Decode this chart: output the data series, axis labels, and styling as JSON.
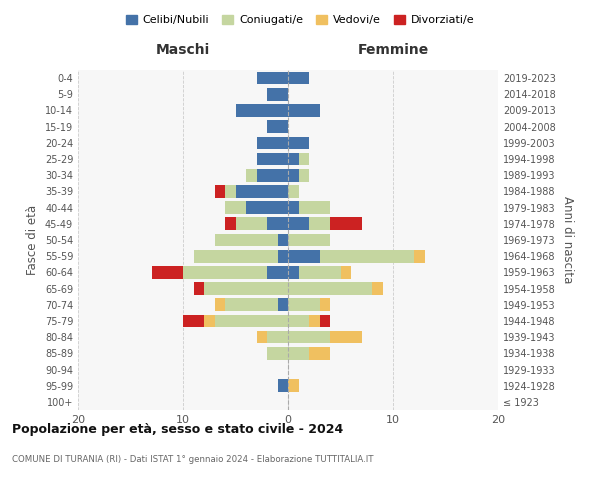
{
  "age_groups": [
    "100+",
    "95-99",
    "90-94",
    "85-89",
    "80-84",
    "75-79",
    "70-74",
    "65-69",
    "60-64",
    "55-59",
    "50-54",
    "45-49",
    "40-44",
    "35-39",
    "30-34",
    "25-29",
    "20-24",
    "15-19",
    "10-14",
    "5-9",
    "0-4"
  ],
  "birth_years": [
    "≤ 1923",
    "1924-1928",
    "1929-1933",
    "1934-1938",
    "1939-1943",
    "1944-1948",
    "1949-1953",
    "1954-1958",
    "1959-1963",
    "1964-1968",
    "1969-1973",
    "1974-1978",
    "1979-1983",
    "1984-1988",
    "1989-1993",
    "1994-1998",
    "1999-2003",
    "2004-2008",
    "2009-2013",
    "2014-2018",
    "2019-2023"
  ],
  "maschi": {
    "celibi": [
      0,
      1,
      0,
      0,
      0,
      0,
      1,
      0,
      2,
      1,
      1,
      2,
      4,
      5,
      3,
      3,
      3,
      2,
      5,
      2,
      3
    ],
    "coniugati": [
      0,
      0,
      0,
      2,
      2,
      7,
      5,
      8,
      8,
      8,
      6,
      3,
      2,
      1,
      1,
      0,
      0,
      0,
      0,
      0,
      0
    ],
    "vedovi": [
      0,
      0,
      0,
      0,
      1,
      1,
      1,
      0,
      0,
      0,
      0,
      0,
      0,
      0,
      0,
      0,
      0,
      0,
      0,
      0,
      0
    ],
    "divorziati": [
      0,
      0,
      0,
      0,
      0,
      2,
      0,
      1,
      3,
      0,
      0,
      1,
      0,
      1,
      0,
      0,
      0,
      0,
      0,
      0,
      0
    ]
  },
  "femmine": {
    "nubili": [
      0,
      0,
      0,
      0,
      0,
      0,
      0,
      0,
      1,
      3,
      0,
      2,
      1,
      0,
      1,
      1,
      2,
      0,
      3,
      0,
      2
    ],
    "coniugate": [
      0,
      0,
      0,
      2,
      4,
      2,
      3,
      8,
      4,
      9,
      4,
      2,
      3,
      1,
      1,
      1,
      0,
      0,
      0,
      0,
      0
    ],
    "vedove": [
      0,
      1,
      0,
      2,
      3,
      1,
      1,
      1,
      1,
      1,
      0,
      0,
      0,
      0,
      0,
      0,
      0,
      0,
      0,
      0,
      0
    ],
    "divorziate": [
      0,
      0,
      0,
      0,
      0,
      1,
      0,
      0,
      0,
      0,
      0,
      3,
      0,
      0,
      0,
      0,
      0,
      0,
      0,
      0,
      0
    ]
  },
  "colors": {
    "celibi": "#4472a8",
    "coniugati": "#c5d6a0",
    "vedovi": "#f0c060",
    "divorziati": "#cc2222"
  },
  "title": "Popolazione per età, sesso e stato civile - 2024",
  "subtitle": "COMUNE DI TURANIA (RI) - Dati ISTAT 1° gennaio 2024 - Elaborazione TUTTITALIA.IT",
  "xlabel_left": "Maschi",
  "xlabel_right": "Femmine",
  "ylabel_left": "Fasce di età",
  "ylabel_right": "Anni di nascita",
  "xlim": 20,
  "legend_labels": [
    "Celibi/Nubili",
    "Coniugati/e",
    "Vedovi/e",
    "Divorziati/e"
  ],
  "background_color": "#ffffff"
}
